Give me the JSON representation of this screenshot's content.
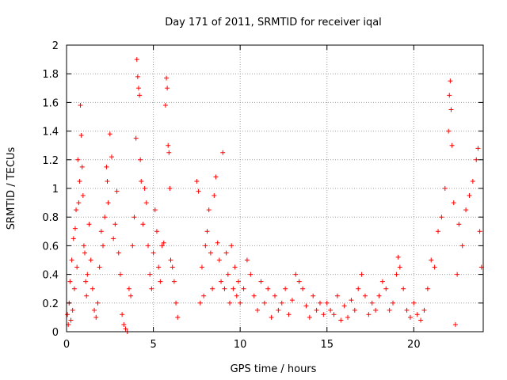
{
  "chart_data": {
    "type": "scatter",
    "title": "Day 171 of 2011, SRMTID for receiver iqal",
    "xlabel": "GPS time / hours",
    "ylabel": "SRMTID / TECUs",
    "xlim": [
      0,
      24
    ],
    "ylim": [
      0,
      2
    ],
    "x_ticks": [
      0,
      5,
      10,
      15,
      20
    ],
    "y_ticks": [
      0,
      0.2,
      0.4,
      0.6,
      0.8,
      1,
      1.2,
      1.4,
      1.6,
      1.8,
      2
    ],
    "x_tick_labels": [
      "0",
      "5",
      "10",
      "15",
      "20"
    ],
    "y_tick_labels": [
      "0",
      "0.2",
      "0.4",
      "0.6",
      "0.8",
      "1",
      "1.2",
      "1.4",
      "1.6",
      "1.8",
      "2"
    ],
    "grid": true,
    "marker": "+",
    "color": "#ff0000",
    "series": [
      {
        "name": "SRMTID",
        "points": [
          [
            0.05,
            0.12
          ],
          [
            0.1,
            0.05
          ],
          [
            0.15,
            0.2
          ],
          [
            0.2,
            0.35
          ],
          [
            0.25,
            0.08
          ],
          [
            0.3,
            0.5
          ],
          [
            0.35,
            0.15
          ],
          [
            0.4,
            0.65
          ],
          [
            0.45,
            0.3
          ],
          [
            0.5,
            0.72
          ],
          [
            0.55,
            0.85
          ],
          [
            0.6,
            0.45
          ],
          [
            0.65,
            1.2
          ],
          [
            0.7,
            0.9
          ],
          [
            0.75,
            1.05
          ],
          [
            0.8,
            1.58
          ],
          [
            0.85,
            1.37
          ],
          [
            0.9,
            1.15
          ],
          [
            0.95,
            0.95
          ],
          [
            1.0,
            0.6
          ],
          [
            1.05,
            0.55
          ],
          [
            1.1,
            0.35
          ],
          [
            1.15,
            0.25
          ],
          [
            1.2,
            0.4
          ],
          [
            1.3,
            0.75
          ],
          [
            1.4,
            0.5
          ],
          [
            1.5,
            0.3
          ],
          [
            1.6,
            0.15
          ],
          [
            1.7,
            0.1
          ],
          [
            1.8,
            0.2
          ],
          [
            1.9,
            0.45
          ],
          [
            2.0,
            0.7
          ],
          [
            2.1,
            0.6
          ],
          [
            2.2,
            0.8
          ],
          [
            2.3,
            1.15
          ],
          [
            2.35,
            1.05
          ],
          [
            2.4,
            0.9
          ],
          [
            2.5,
            1.38
          ],
          [
            2.6,
            1.22
          ],
          [
            2.7,
            0.65
          ],
          [
            2.8,
            0.75
          ],
          [
            2.9,
            0.98
          ],
          [
            3.0,
            0.55
          ],
          [
            3.1,
            0.4
          ],
          [
            3.2,
            0.12
          ],
          [
            3.3,
            0.05
          ],
          [
            3.4,
            0.02
          ],
          [
            3.5,
            0.0
          ],
          [
            3.6,
            0.3
          ],
          [
            3.7,
            0.25
          ],
          [
            3.8,
            0.6
          ],
          [
            3.9,
            0.8
          ],
          [
            4.0,
            1.35
          ],
          [
            4.05,
            1.9
          ],
          [
            4.1,
            1.78
          ],
          [
            4.15,
            1.7
          ],
          [
            4.2,
            1.65
          ],
          [
            4.25,
            1.2
          ],
          [
            4.3,
            1.05
          ],
          [
            4.4,
            0.75
          ],
          [
            4.5,
            1.0
          ],
          [
            4.6,
            0.9
          ],
          [
            4.7,
            0.6
          ],
          [
            4.8,
            0.4
          ],
          [
            4.9,
            0.3
          ],
          [
            5.0,
            0.55
          ],
          [
            5.1,
            0.85
          ],
          [
            5.2,
            0.7
          ],
          [
            5.3,
            0.45
          ],
          [
            5.4,
            0.35
          ],
          [
            5.5,
            0.6
          ],
          [
            5.6,
            0.62
          ],
          [
            5.7,
            1.58
          ],
          [
            5.75,
            1.77
          ],
          [
            5.8,
            1.7
          ],
          [
            5.85,
            1.3
          ],
          [
            5.9,
            1.25
          ],
          [
            5.95,
            1.0
          ],
          [
            6.0,
            0.5
          ],
          [
            6.1,
            0.45
          ],
          [
            6.2,
            0.35
          ],
          [
            6.3,
            0.2
          ],
          [
            6.4,
            0.1
          ],
          [
            7.5,
            1.05
          ],
          [
            7.6,
            0.98
          ],
          [
            7.7,
            0.2
          ],
          [
            7.8,
            0.45
          ],
          [
            7.9,
            0.25
          ],
          [
            8.0,
            0.6
          ],
          [
            8.1,
            0.7
          ],
          [
            8.2,
            0.85
          ],
          [
            8.3,
            0.55
          ],
          [
            8.4,
            0.3
          ],
          [
            8.5,
            0.95
          ],
          [
            8.6,
            1.08
          ],
          [
            8.7,
            0.62
          ],
          [
            8.8,
            0.5
          ],
          [
            8.9,
            0.35
          ],
          [
            9.0,
            1.25
          ],
          [
            9.1,
            0.3
          ],
          [
            9.2,
            0.55
          ],
          [
            9.3,
            0.4
          ],
          [
            9.4,
            0.2
          ],
          [
            9.5,
            0.6
          ],
          [
            9.6,
            0.3
          ],
          [
            9.7,
            0.45
          ],
          [
            9.8,
            0.25
          ],
          [
            9.9,
            0.35
          ],
          [
            10.0,
            0.2
          ],
          [
            10.2,
            0.3
          ],
          [
            10.4,
            0.5
          ],
          [
            10.6,
            0.4
          ],
          [
            10.8,
            0.25
          ],
          [
            11.0,
            0.15
          ],
          [
            11.2,
            0.35
          ],
          [
            11.4,
            0.2
          ],
          [
            11.6,
            0.3
          ],
          [
            11.8,
            0.1
          ],
          [
            12.0,
            0.25
          ],
          [
            12.2,
            0.15
          ],
          [
            12.4,
            0.2
          ],
          [
            12.6,
            0.3
          ],
          [
            12.8,
            0.12
          ],
          [
            13.0,
            0.22
          ],
          [
            13.2,
            0.4
          ],
          [
            13.4,
            0.35
          ],
          [
            13.6,
            0.3
          ],
          [
            13.8,
            0.18
          ],
          [
            14.0,
            0.1
          ],
          [
            14.2,
            0.25
          ],
          [
            14.4,
            0.15
          ],
          [
            14.6,
            0.2
          ],
          [
            14.8,
            0.12
          ],
          [
            15.0,
            0.2
          ],
          [
            15.2,
            0.15
          ],
          [
            15.4,
            0.12
          ],
          [
            15.6,
            0.25
          ],
          [
            15.8,
            0.08
          ],
          [
            16.0,
            0.18
          ],
          [
            16.2,
            0.1
          ],
          [
            16.4,
            0.22
          ],
          [
            16.6,
            0.15
          ],
          [
            16.8,
            0.3
          ],
          [
            17.0,
            0.4
          ],
          [
            17.2,
            0.25
          ],
          [
            17.4,
            0.12
          ],
          [
            17.6,
            0.2
          ],
          [
            17.8,
            0.15
          ],
          [
            18.0,
            0.25
          ],
          [
            18.2,
            0.35
          ],
          [
            18.4,
            0.3
          ],
          [
            18.6,
            0.15
          ],
          [
            18.8,
            0.2
          ],
          [
            19.0,
            0.4
          ],
          [
            19.1,
            0.52
          ],
          [
            19.2,
            0.45
          ],
          [
            19.4,
            0.3
          ],
          [
            19.6,
            0.15
          ],
          [
            19.8,
            0.1
          ],
          [
            20.0,
            0.2
          ],
          [
            20.2,
            0.12
          ],
          [
            20.4,
            0.08
          ],
          [
            20.6,
            0.15
          ],
          [
            20.8,
            0.3
          ],
          [
            21.0,
            0.5
          ],
          [
            21.2,
            0.45
          ],
          [
            21.4,
            0.7
          ],
          [
            21.6,
            0.8
          ],
          [
            21.8,
            1.0
          ],
          [
            22.0,
            1.4
          ],
          [
            22.05,
            1.65
          ],
          [
            22.1,
            1.75
          ],
          [
            22.15,
            1.55
          ],
          [
            22.2,
            1.3
          ],
          [
            22.3,
            0.9
          ],
          [
            22.4,
            0.05
          ],
          [
            22.5,
            0.4
          ],
          [
            22.6,
            0.75
          ],
          [
            22.8,
            0.6
          ],
          [
            23.0,
            0.85
          ],
          [
            23.2,
            0.95
          ],
          [
            23.4,
            1.05
          ],
          [
            23.6,
            1.2
          ],
          [
            23.7,
            1.28
          ],
          [
            23.8,
            0.7
          ],
          [
            23.9,
            0.45
          ]
        ]
      }
    ]
  }
}
